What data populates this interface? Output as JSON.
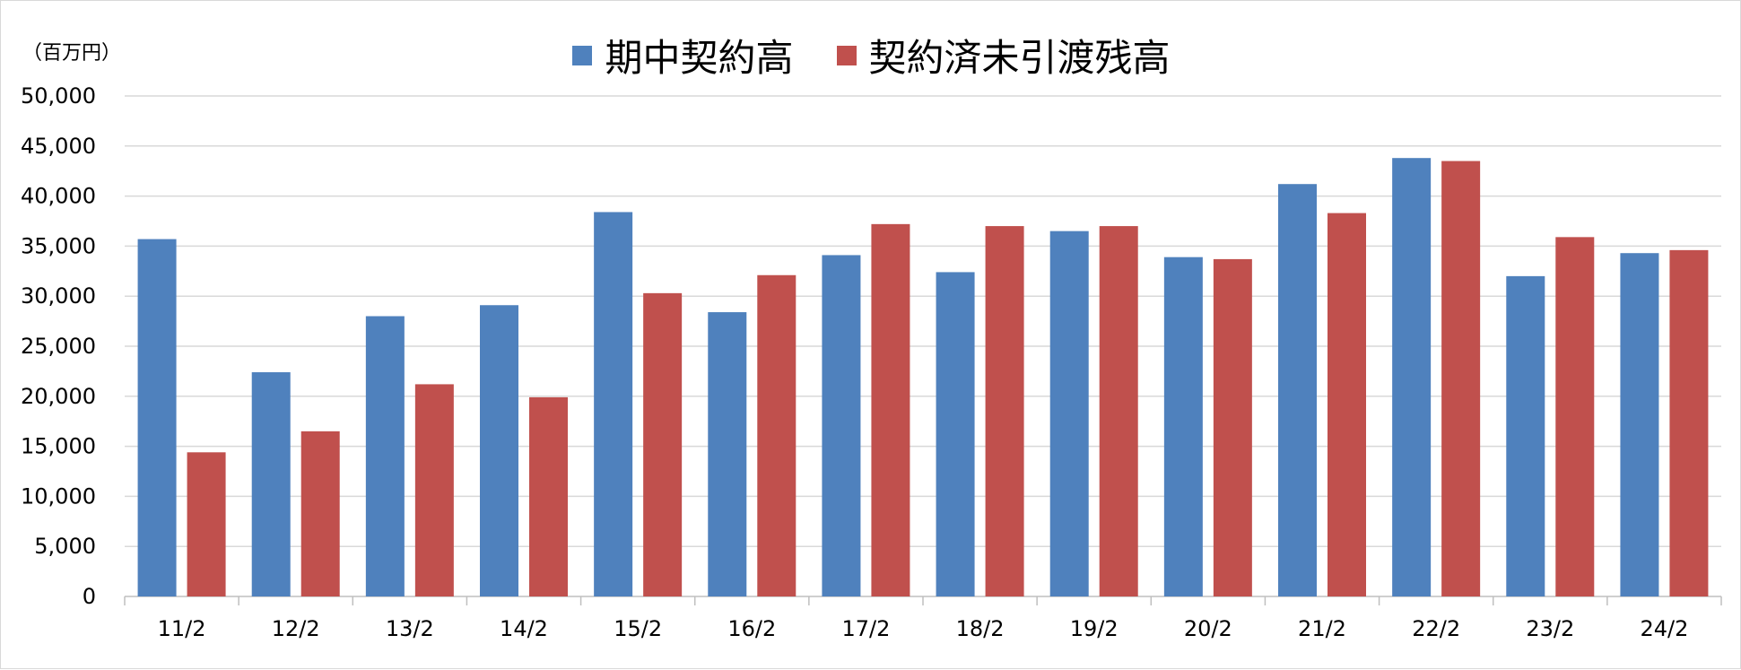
{
  "chart_data": {
    "type": "bar",
    "unit_label": "（百万円）",
    "categories": [
      "11/2",
      "12/2",
      "13/2",
      "14/2",
      "15/2",
      "16/2",
      "17/2",
      "18/2",
      "19/2",
      "20/2",
      "21/2",
      "22/2",
      "23/2",
      "24/2"
    ],
    "series": [
      {
        "name": "期中契約高",
        "color": "#4f81bd",
        "values": [
          35700,
          22400,
          28000,
          29100,
          38400,
          28400,
          34100,
          32400,
          36500,
          33900,
          41200,
          43800,
          32000,
          34300
        ]
      },
      {
        "name": "契約済未引渡残高",
        "color": "#c0504d",
        "values": [
          14400,
          16500,
          21200,
          19900,
          30300,
          32100,
          37200,
          37000,
          37000,
          33700,
          38300,
          43500,
          35900,
          34600
        ]
      }
    ],
    "yticks": [
      "0",
      "5,000",
      "10,000",
      "15,000",
      "20,000",
      "25,000",
      "30,000",
      "35,000",
      "40,000",
      "45,000",
      "50,000"
    ],
    "ylim": [
      0,
      50000
    ],
    "grid": true,
    "legend_position": "top-center"
  }
}
